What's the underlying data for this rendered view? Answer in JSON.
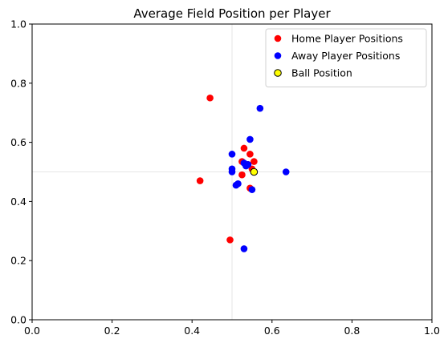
{
  "chart_data": {
    "type": "scatter",
    "title": "Average Field Position per Player",
    "xlabel": "",
    "ylabel": "",
    "xlim": [
      0,
      1
    ],
    "ylim": [
      0,
      1
    ],
    "xticks": [
      "0.0",
      "0.2",
      "0.4",
      "0.6",
      "0.8",
      "1.0"
    ],
    "yticks": [
      "0.0",
      "0.2",
      "0.4",
      "0.6",
      "0.8",
      "1.0"
    ],
    "grid": false,
    "reference_lines": {
      "x": 0.5,
      "y": 0.5
    },
    "legend_position": "top-right",
    "series": [
      {
        "name": "Home Player Positions",
        "color": "#ff0000",
        "points": [
          [
            0.445,
            0.75
          ],
          [
            0.42,
            0.47
          ],
          [
            0.495,
            0.27
          ],
          [
            0.53,
            0.58
          ],
          [
            0.545,
            0.56
          ],
          [
            0.525,
            0.535
          ],
          [
            0.555,
            0.535
          ],
          [
            0.54,
            0.525
          ],
          [
            0.55,
            0.51
          ],
          [
            0.525,
            0.49
          ],
          [
            0.545,
            0.445
          ]
        ]
      },
      {
        "name": "Away Player Positions",
        "color": "#0000ff",
        "points": [
          [
            0.57,
            0.715
          ],
          [
            0.545,
            0.61
          ],
          [
            0.5,
            0.56
          ],
          [
            0.53,
            0.53
          ],
          [
            0.535,
            0.52
          ],
          [
            0.54,
            0.525
          ],
          [
            0.5,
            0.51
          ],
          [
            0.5,
            0.5
          ],
          [
            0.635,
            0.5
          ],
          [
            0.51,
            0.455
          ],
          [
            0.515,
            0.46
          ],
          [
            0.55,
            0.44
          ],
          [
            0.53,
            0.24
          ]
        ]
      },
      {
        "name": "Ball Position",
        "color": "#ffff00",
        "edge_color": "#000000",
        "points": [
          [
            0.555,
            0.5
          ]
        ]
      }
    ]
  }
}
